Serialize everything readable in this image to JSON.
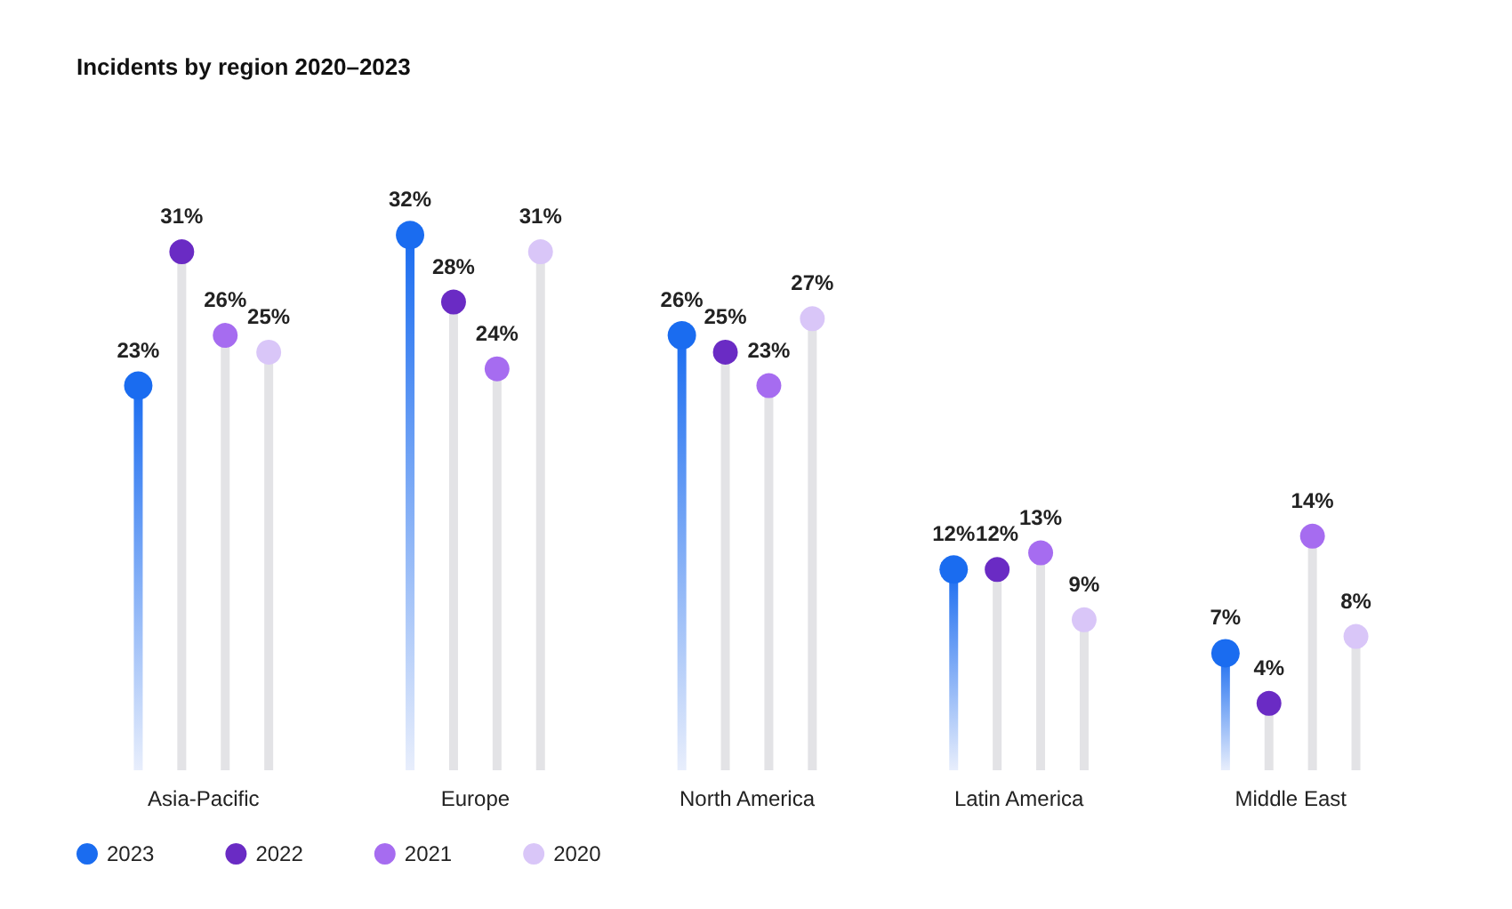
{
  "chart_data": {
    "type": "lollipop",
    "title": "Incidents by region 2020–2023",
    "categories": [
      "Asia-Pacific",
      "Europe",
      "North America",
      "Latin America",
      "Middle East"
    ],
    "series": [
      {
        "name": "2023",
        "color": "#1a6cf0",
        "values": [
          23,
          32,
          26,
          12,
          7
        ],
        "value_labels": [
          "23%",
          "32%",
          "26%",
          "12%",
          "7%"
        ]
      },
      {
        "name": "2022",
        "color": "#6a2bc4",
        "values": [
          31,
          28,
          25,
          12,
          4
        ],
        "value_labels": [
          "31%",
          "28%",
          "25%",
          "12%",
          "4%"
        ]
      },
      {
        "name": "2021",
        "color": "#a66cf0",
        "values": [
          26,
          24,
          23,
          13,
          14
        ],
        "value_labels": [
          "26%",
          "24%",
          "23%",
          "13%",
          "14%"
        ]
      },
      {
        "name": "2020",
        "color": "#d9c6f8",
        "values": [
          25,
          31,
          27,
          9,
          8
        ],
        "value_labels": [
          "25%",
          "31%",
          "27%",
          "9%",
          "8%"
        ]
      }
    ],
    "marker": "circle",
    "grid": false,
    "legend": "bottom left"
  }
}
